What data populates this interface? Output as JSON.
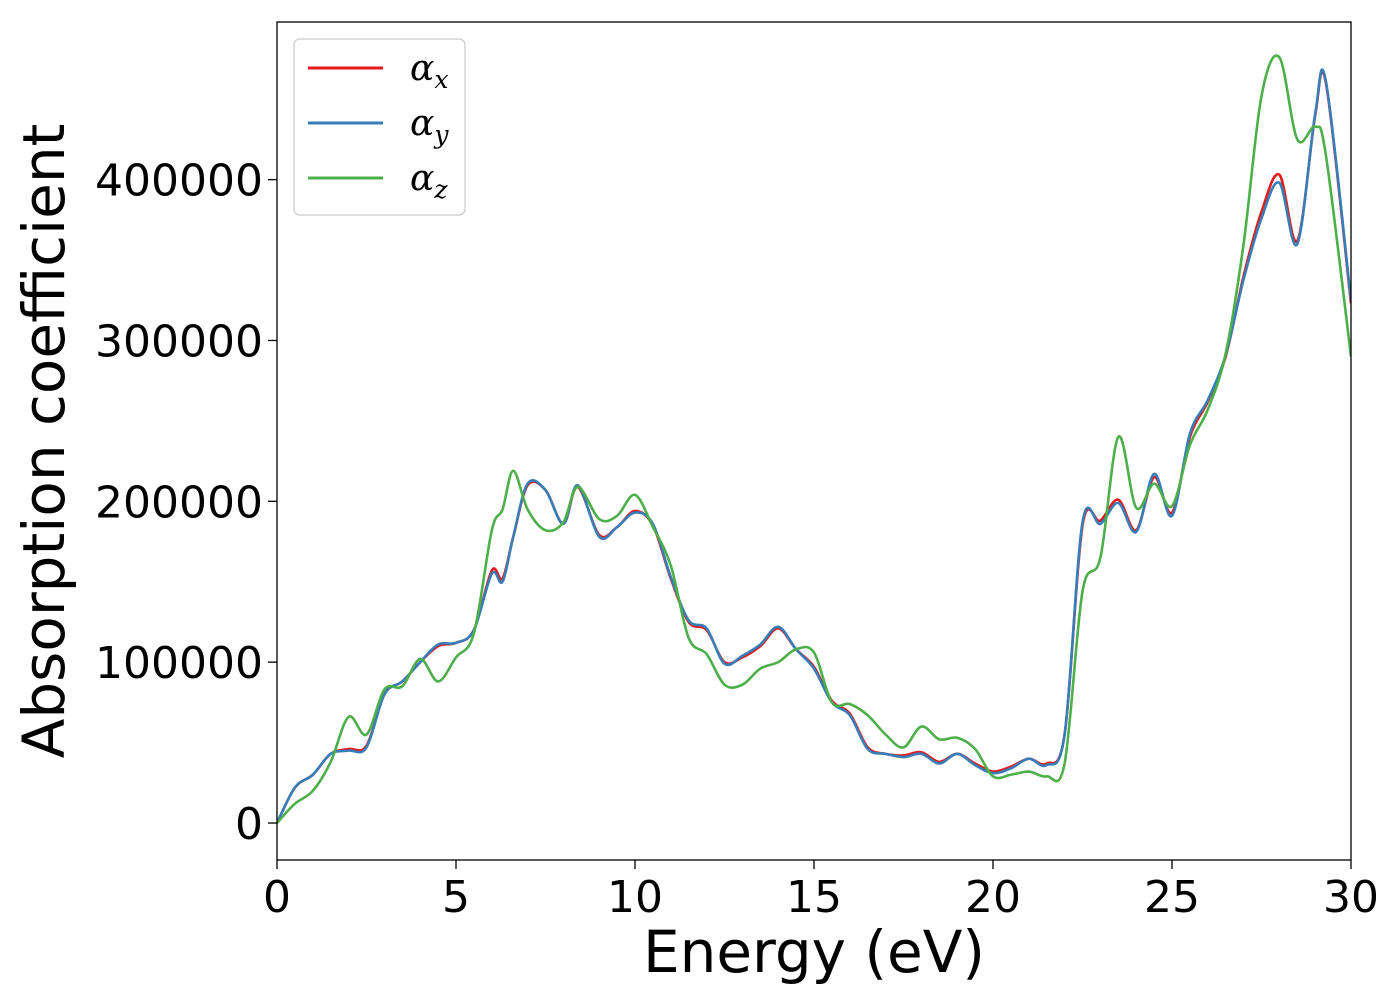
{
  "chart_data": {
    "type": "line",
    "xlabel": "Energy (eV)",
    "ylabel": "Absorption coefficient",
    "xlim": [
      0,
      30
    ],
    "ylim": [
      -23000,
      498000
    ],
    "xticks": [
      0,
      5,
      10,
      15,
      20,
      25,
      30
    ],
    "xtick_labels": [
      "0",
      "5",
      "10",
      "15",
      "20",
      "25",
      "30"
    ],
    "yticks": [
      0,
      100000,
      200000,
      300000,
      400000
    ],
    "ytick_labels": [
      "0",
      "100000",
      "200000",
      "300000",
      "400000"
    ],
    "grid": false,
    "legend": {
      "position": "top-left"
    },
    "series": [
      {
        "name": "α_x",
        "symbol": "α",
        "subscript": "x",
        "color": "#e41a1c",
        "x": [
          0,
          0.5,
          1,
          1.5,
          2,
          2.5,
          3,
          3.5,
          4,
          4.5,
          5,
          5.5,
          6,
          6.3,
          6.6,
          7,
          7.5,
          8,
          8.4,
          9,
          9.5,
          10,
          10.5,
          11,
          11.5,
          12,
          12.5,
          13,
          13.5,
          14,
          14.5,
          15,
          15.5,
          16,
          16.5,
          17,
          17.5,
          18,
          18.5,
          19,
          19.5,
          20,
          20.5,
          21,
          21.5,
          22,
          22.5,
          23,
          23.5,
          24,
          24.5,
          25,
          25.5,
          26,
          26.5,
          27,
          27.5,
          28,
          28.5,
          29,
          29.3,
          30
        ],
        "values": [
          0,
          22000,
          30000,
          43000,
          46000,
          48000,
          80000,
          88000,
          100000,
          110000,
          112000,
          120000,
          157000,
          152000,
          178000,
          210000,
          207000,
          186000,
          209000,
          179000,
          184000,
          194000,
          185000,
          152000,
          125000,
          120000,
          100000,
          103000,
          110000,
          121000,
          108000,
          97000,
          76000,
          68000,
          47000,
          43000,
          42000,
          44000,
          38000,
          43000,
          37000,
          32000,
          35000,
          40000,
          37000,
          55000,
          185000,
          188000,
          201000,
          182000,
          215000,
          193000,
          240000,
          262000,
          290000,
          340000,
          380000,
          403000,
          362000,
          440000,
          460000,
          323000
        ]
      },
      {
        "name": "α_y",
        "symbol": "α",
        "subscript": "y",
        "color": "#377eb8",
        "x": [
          0,
          0.5,
          1,
          1.5,
          2,
          2.5,
          3,
          3.5,
          4,
          4.5,
          5,
          5.5,
          6,
          6.3,
          6.6,
          7,
          7.5,
          8,
          8.4,
          9,
          9.5,
          10,
          10.5,
          11,
          11.5,
          12,
          12.5,
          13,
          13.5,
          14,
          14.5,
          15,
          15.5,
          16,
          16.5,
          17,
          17.5,
          18,
          18.5,
          19,
          19.5,
          20,
          20.5,
          21,
          21.5,
          22,
          22.5,
          23,
          23.5,
          24,
          24.5,
          25,
          25.5,
          26,
          26.5,
          27,
          27.5,
          28,
          28.5,
          29,
          29.3,
          30
        ],
        "values": [
          0,
          22000,
          30000,
          43000,
          45000,
          47000,
          80000,
          88000,
          100000,
          111000,
          112000,
          120000,
          155000,
          150000,
          178000,
          211000,
          207000,
          186000,
          210000,
          178000,
          184000,
          193000,
          186000,
          153000,
          126000,
          121000,
          99000,
          104000,
          111000,
          122000,
          108000,
          96000,
          75000,
          67000,
          46000,
          43000,
          41000,
          43000,
          37000,
          43000,
          36000,
          31000,
          34000,
          40000,
          36000,
          55000,
          187000,
          186000,
          199000,
          181000,
          217000,
          191000,
          242000,
          263000,
          291000,
          338000,
          376000,
          398000,
          360000,
          441000,
          461000,
          325000
        ]
      },
      {
        "name": "α_z",
        "symbol": "α",
        "subscript": "z",
        "color": "#4daf4a",
        "x": [
          0,
          0.5,
          1,
          1.5,
          2,
          2.5,
          3,
          3.5,
          4,
          4.5,
          5,
          5.5,
          6,
          6.3,
          6.6,
          7,
          7.5,
          8,
          8.4,
          9,
          9.5,
          10,
          10.5,
          11,
          11.5,
          12,
          12.5,
          13,
          13.5,
          14,
          14.5,
          15,
          15.5,
          16,
          16.5,
          17,
          17.5,
          18,
          18.5,
          19,
          19.5,
          20,
          20.5,
          21,
          21.5,
          22,
          22.5,
          23,
          23.5,
          24,
          24.5,
          25,
          25.5,
          26,
          26.5,
          27,
          27.5,
          28,
          28.5,
          29,
          29.3,
          30
        ],
        "values": [
          0,
          12000,
          20000,
          38000,
          66000,
          55000,
          83000,
          85000,
          102000,
          88000,
          103000,
          118000,
          182000,
          195000,
          219000,
          195000,
          182000,
          187000,
          209000,
          189000,
          191000,
          204000,
          184000,
          160000,
          115000,
          105000,
          86000,
          86000,
          96000,
          100000,
          108000,
          106000,
          75000,
          74000,
          67000,
          55000,
          47000,
          60000,
          52000,
          53000,
          46000,
          29000,
          30000,
          32000,
          29000,
          37000,
          144000,
          165000,
          240000,
          196000,
          211000,
          197000,
          235000,
          257000,
          292000,
          360000,
          452000,
          476000,
          425000,
          433000,
          415000,
          290000
        ]
      }
    ]
  }
}
